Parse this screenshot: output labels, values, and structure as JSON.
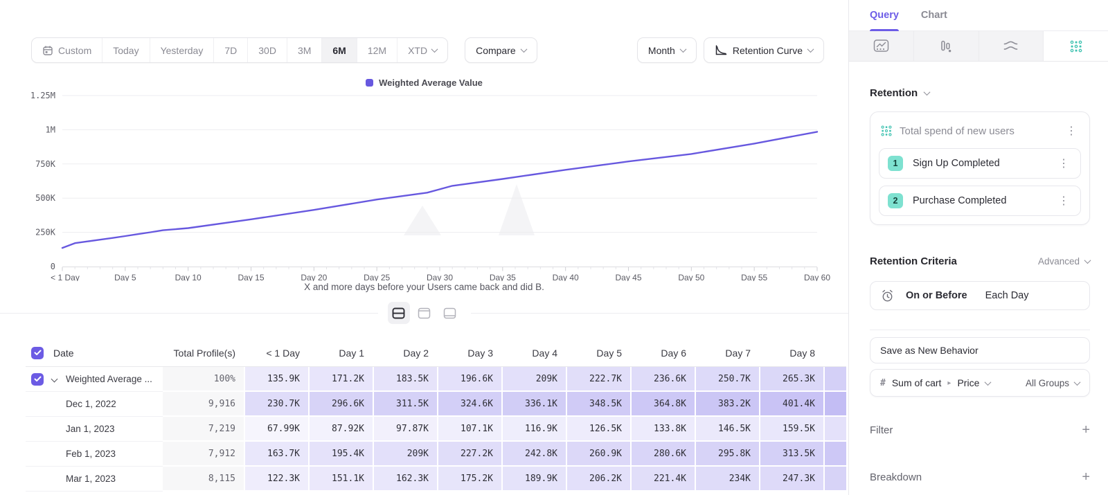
{
  "colors": {
    "accent": "#6758DF",
    "cell_purple_rgb": [
      106,
      91,
      227
    ],
    "teal": "#3EC2B0"
  },
  "toolbar": {
    "ranges": [
      "Custom",
      "Today",
      "Yesterday",
      "7D",
      "30D",
      "3M",
      "6M",
      "12M",
      "XTD"
    ],
    "selected_range": "6M",
    "compare": "Compare",
    "granularity": "Month",
    "chart_type": "Retention Curve"
  },
  "chart_data": {
    "type": "line",
    "legend": [
      {
        "label": "Weighted Average Value",
        "color": "#6758DF"
      }
    ],
    "x_tick_labels": [
      "< 1 Day",
      "Day 5",
      "Day 10",
      "Day 15",
      "Day 20",
      "Day 25",
      "Day 30",
      "Day 35",
      "Day 40",
      "Day 45",
      "Day 50",
      "Day 55",
      "Day 60"
    ],
    "x_tick_days": [
      0,
      5,
      10,
      15,
      20,
      25,
      30,
      35,
      40,
      45,
      50,
      55,
      60
    ],
    "y_tick_labels": [
      "0",
      "250K",
      "500K",
      "750K",
      "1M",
      "1.25M"
    ],
    "y_tick_values_k": [
      0,
      250,
      500,
      750,
      1000,
      1250
    ],
    "xlim_days": [
      0,
      60
    ],
    "ylim_k": [
      0,
      1250
    ],
    "series": [
      {
        "name": "Weighted Average Value",
        "color": "#6758DF",
        "points_day_valueK": [
          [
            0,
            135.9
          ],
          [
            1,
            171.2
          ],
          [
            2,
            183.5
          ],
          [
            3,
            196.6
          ],
          [
            4,
            209
          ],
          [
            5,
            222.7
          ],
          [
            6,
            236.6
          ],
          [
            7,
            250.7
          ],
          [
            8,
            265.3
          ],
          [
            10,
            281
          ],
          [
            15,
            345
          ],
          [
            20,
            414
          ],
          [
            25,
            490
          ],
          [
            29,
            540
          ],
          [
            30,
            565
          ],
          [
            31,
            590
          ],
          [
            35,
            640
          ],
          [
            40,
            707
          ],
          [
            45,
            768
          ],
          [
            50,
            823
          ],
          [
            55,
            899
          ],
          [
            60,
            985
          ]
        ]
      }
    ],
    "caption": "X and more days before your Users came back and did B."
  },
  "view_toggle": {
    "options": [
      "split-equal",
      "chart-focus",
      "table-focus"
    ],
    "selected": "split-equal"
  },
  "table": {
    "select_all_checked": true,
    "columns": [
      "Date",
      "Total Profile(s)",
      "< 1 Day",
      "Day 1",
      "Day 2",
      "Day 3",
      "Day 4",
      "Day 5",
      "Day 6",
      "Day 7",
      "Day 8"
    ],
    "rows": [
      {
        "label": "Weighted Average ...",
        "expandable": true,
        "checked": true,
        "total": "100%",
        "values": [
          "135.9K",
          "171.2K",
          "183.5K",
          "196.6K",
          "209K",
          "222.7K",
          "236.6K",
          "250.7K",
          "265.3K"
        ]
      },
      {
        "label": "Dec 1, 2022",
        "total": "9,916",
        "values": [
          "230.7K",
          "296.6K",
          "311.5K",
          "324.6K",
          "336.1K",
          "348.5K",
          "364.8K",
          "383.2K",
          "401.4K"
        ]
      },
      {
        "label": "Jan 1, 2023",
        "total": "7,219",
        "values": [
          "67.99K",
          "87.92K",
          "97.87K",
          "107.1K",
          "116.9K",
          "126.5K",
          "133.8K",
          "146.5K",
          "159.5K"
        ]
      },
      {
        "label": "Feb 1, 2023",
        "total": "7,912",
        "values": [
          "163.7K",
          "195.4K",
          "209K",
          "227.2K",
          "242.8K",
          "260.9K",
          "280.6K",
          "295.8K",
          "313.5K"
        ]
      },
      {
        "label": "Mar 1, 2023",
        "total": "8,115",
        "values": [
          "122.3K",
          "151.1K",
          "162.3K",
          "175.2K",
          "189.9K",
          "206.2K",
          "221.4K",
          "234K",
          "247.3K"
        ]
      }
    ]
  },
  "sidebar": {
    "tabs": [
      {
        "label": "Query",
        "active": true
      },
      {
        "label": "Chart",
        "active": false
      }
    ],
    "icon_tabs": [
      {
        "name": "insights",
        "active": false
      },
      {
        "name": "funnels",
        "active": false
      },
      {
        "name": "flows",
        "active": false
      },
      {
        "name": "retention",
        "active": true
      }
    ],
    "section_label": "Retention",
    "behavior_card": {
      "title": "Total spend of new users",
      "steps": [
        {
          "index": "1",
          "label": "Sign Up Completed"
        },
        {
          "index": "2",
          "label": "Purchase Completed"
        }
      ]
    },
    "criteria": {
      "label": "Retention Criteria",
      "mode": "Advanced",
      "condition": "On or Before",
      "window": "Each Day"
    },
    "save_button": "Save as New Behavior",
    "measurement": {
      "prefix": "#",
      "property": "Sum of cart",
      "sub_property": "Price",
      "group": "All Groups"
    },
    "filter_label": "Filter",
    "breakdown_label": "Breakdown"
  }
}
